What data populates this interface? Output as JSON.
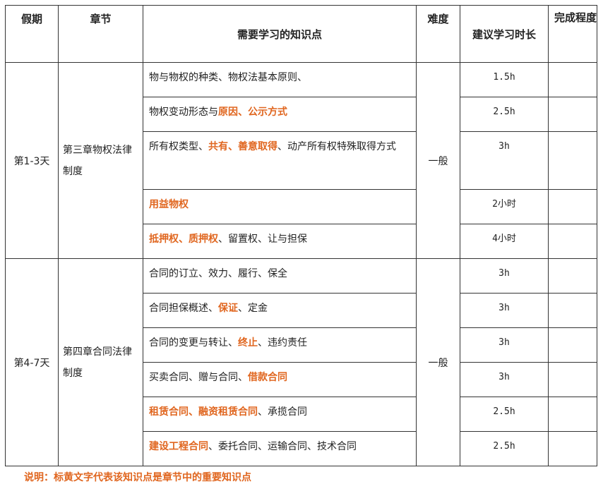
{
  "headers": {
    "period": "假期",
    "chapter": "章节",
    "knowledge": "需要学习的知识点",
    "difficulty": "难度",
    "time": "建议学习时长",
    "completion": "完成程度"
  },
  "groups": [
    {
      "period": "第1-3天",
      "chapter": "第三章物权法律制度",
      "difficulty": "一般",
      "rows": [
        {
          "parts": [
            {
              "t": "物与物权的种类、物权法基本原则、",
              "hl": false
            }
          ],
          "time": "1.5h"
        },
        {
          "parts": [
            {
              "t": "物权变动形态与",
              "hl": false
            },
            {
              "t": "原因、公示方式",
              "hl": true
            }
          ],
          "time": "2.5h"
        },
        {
          "parts": [
            {
              "t": "所有权类型、",
              "hl": false
            },
            {
              "t": "共有、善意取得",
              "hl": true
            },
            {
              "t": "、动产所有权特殊取得方式",
              "hl": false
            }
          ],
          "time": "3h"
        },
        {
          "parts": [
            {
              "t": "用益物权",
              "hl": true
            }
          ],
          "time": "2小时"
        },
        {
          "parts": [
            {
              "t": "抵押权、质押权",
              "hl": true
            },
            {
              "t": "、留置权、让与担保",
              "hl": false
            }
          ],
          "time": "4小时"
        }
      ]
    },
    {
      "period": "第4-7天",
      "chapter": "第四章合同法律制度",
      "difficulty": "一般",
      "rows": [
        {
          "parts": [
            {
              "t": "合同的订立、效力、履行、保全",
              "hl": false
            }
          ],
          "time": "3h"
        },
        {
          "parts": [
            {
              "t": "合同担保概述、",
              "hl": false
            },
            {
              "t": "保证",
              "hl": true
            },
            {
              "t": "、定金",
              "hl": false
            }
          ],
          "time": "3h"
        },
        {
          "parts": [
            {
              "t": "合同的变更与转让、",
              "hl": false
            },
            {
              "t": "终止",
              "hl": true
            },
            {
              "t": "、违约责任",
              "hl": false
            }
          ],
          "time": "3h"
        },
        {
          "parts": [
            {
              "t": "买卖合同、赠与合同、",
              "hl": false
            },
            {
              "t": "借款合同",
              "hl": true
            }
          ],
          "time": "3h"
        },
        {
          "parts": [
            {
              "t": "租赁合同、融资租赁合同",
              "hl": true
            },
            {
              "t": "、承揽合同",
              "hl": false
            }
          ],
          "time": "2.5h"
        },
        {
          "parts": [
            {
              "t": "建设工程合同",
              "hl": true
            },
            {
              "t": "、委托合同、运输合同、技术合同",
              "hl": false
            }
          ],
          "time": "2.5h"
        }
      ]
    }
  ],
  "note": "说明：标黄文字代表该知识点是章节中的重要知识点",
  "colors": {
    "highlight": "#e0661f",
    "border": "#333333"
  }
}
